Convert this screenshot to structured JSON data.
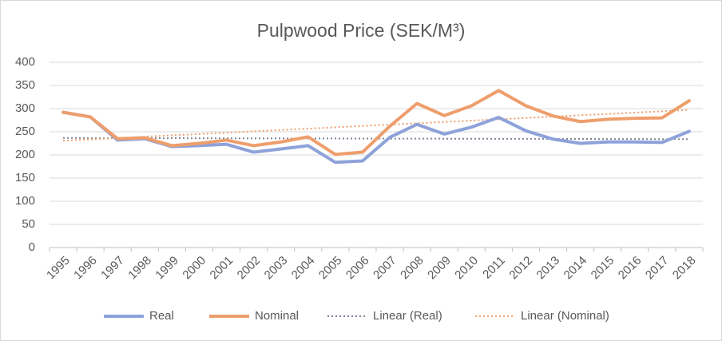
{
  "chart_data": {
    "type": "line",
    "title": "Pulpwood Price (SEK/M³)",
    "categories": [
      "1995",
      "1996",
      "1997",
      "1998",
      "1999",
      "2000",
      "2001",
      "2002",
      "2003",
      "2004",
      "2005",
      "2006",
      "2007",
      "2008",
      "2009",
      "2010",
      "2011",
      "2012",
      "2013",
      "2014",
      "2015",
      "2016",
      "2017",
      "2018"
    ],
    "series": [
      {
        "name": "Real",
        "color": "#8ea2da",
        "values": [
          292,
          282,
          232,
          235,
          218,
          220,
          223,
          206,
          213,
          220,
          184,
          187,
          238,
          266,
          245,
          260,
          281,
          252,
          234,
          225,
          228,
          228,
          227,
          251
        ],
        "trendline": {
          "name": "Linear (Real)",
          "color": "#7f8597"
        }
      },
      {
        "name": "Nominal",
        "color": "#ee9e6c",
        "values": [
          292,
          282,
          235,
          237,
          220,
          225,
          232,
          220,
          228,
          239,
          201,
          206,
          262,
          311,
          285,
          306,
          339,
          306,
          284,
          272,
          277,
          279,
          280,
          317
        ],
        "trendline": {
          "name": "Linear (Nominal)",
          "color": "#ee9e6c"
        }
      }
    ],
    "ylim": [
      0,
      400
    ],
    "yticks": [
      0,
      50,
      100,
      150,
      200,
      250,
      300,
      350,
      400
    ],
    "grid": true,
    "legend": "bottom"
  }
}
